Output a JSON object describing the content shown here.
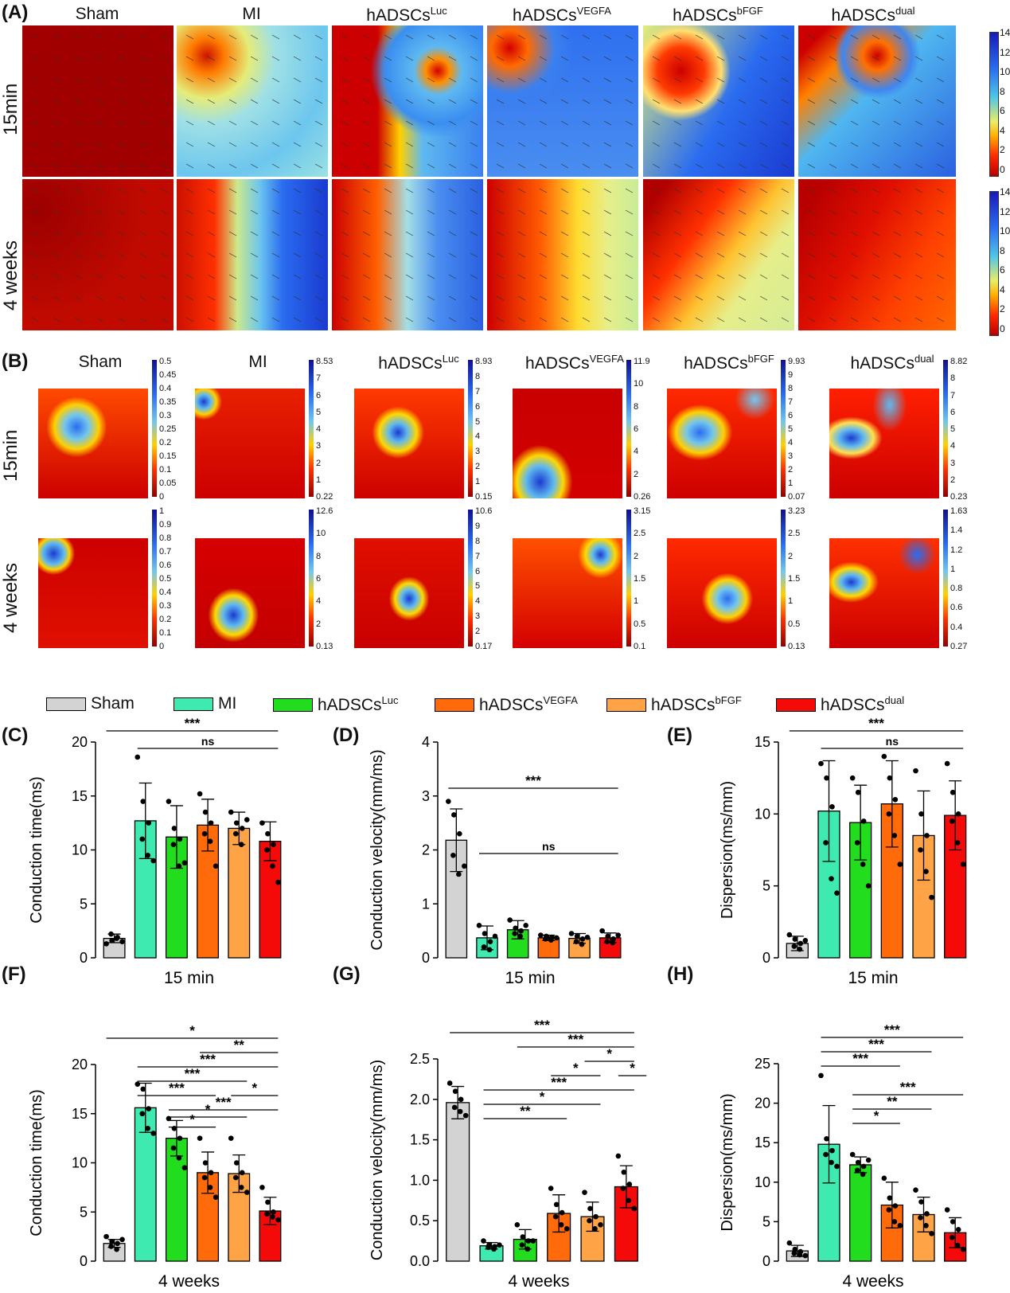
{
  "panel_letters": {
    "A": "(A)",
    "B": "(B)",
    "C": "(C)",
    "D": "(D)",
    "E": "(E)",
    "F": "(F)",
    "G": "(G)",
    "H": "(H)"
  },
  "groups": [
    {
      "base": "Sham",
      "sup": ""
    },
    {
      "base": "MI",
      "sup": ""
    },
    {
      "base": "hADSCs",
      "sup": "Luc"
    },
    {
      "base": "hADSCs",
      "sup": "VEGFA"
    },
    {
      "base": "hADSCs",
      "sup": "bFGF"
    },
    {
      "base": "hADSCs",
      "sup": "dual"
    }
  ],
  "row_labels": {
    "r1": "15min",
    "r2": "4 weeks"
  },
  "panel_a": {
    "colorbar_ticks": [
      "14",
      "12",
      "10",
      "8",
      "6",
      "4",
      "2",
      "0"
    ]
  },
  "panel_b": {
    "row1_scales": [
      {
        "ticks": [
          "0.5",
          "0.45",
          "0.4",
          "0.35",
          "0.3",
          "0.25",
          "0.2",
          "0.15",
          "0.1",
          "0.05",
          "0"
        ]
      },
      {
        "ticks": [
          "8.53",
          "7",
          "6",
          "5",
          "4",
          "3",
          "2",
          "1",
          "0.22"
        ]
      },
      {
        "ticks": [
          "8.93",
          "8",
          "7",
          "6",
          "5",
          "4",
          "3",
          "2",
          "1",
          "0.15"
        ]
      },
      {
        "ticks": [
          "11.9",
          "10",
          "8",
          "6",
          "4",
          "2",
          "0.26"
        ]
      },
      {
        "ticks": [
          "9.93",
          "9",
          "8",
          "7",
          "6",
          "5",
          "4",
          "3",
          "2",
          "1",
          "0.07"
        ]
      },
      {
        "ticks": [
          "8.82",
          "8",
          "7",
          "6",
          "5",
          "4",
          "3",
          "2",
          "0.23"
        ]
      }
    ],
    "row2_scales": [
      {
        "ticks": [
          "1",
          "0.9",
          "0.8",
          "0.7",
          "0.6",
          "0.5",
          "0.4",
          "0.3",
          "0.2",
          "0.1",
          "0"
        ]
      },
      {
        "ticks": [
          "12.6",
          "10",
          "8",
          "6",
          "4",
          "2",
          "0.13"
        ]
      },
      {
        "ticks": [
          "10.6",
          "9",
          "8",
          "7",
          "6",
          "5",
          "4",
          "3",
          "2",
          "0.17"
        ]
      },
      {
        "ticks": [
          "3.15",
          "2.5",
          "2",
          "1.5",
          "1",
          "0.5",
          "0.1"
        ]
      },
      {
        "ticks": [
          "3.23",
          "2.5",
          "2",
          "1.5",
          "1",
          "0.5",
          "0.13"
        ]
      },
      {
        "ticks": [
          "1.63",
          "1.4",
          "1.2",
          "1",
          "0.8",
          "0.6",
          "0.4",
          "0.27"
        ]
      }
    ]
  },
  "legend": {
    "colors": [
      "#d3d3d3",
      "#3eeaaf",
      "#22dd1e",
      "#ff6a0a",
      "#ffa347",
      "#f50a0a"
    ]
  },
  "chart_data": [
    {
      "id": "C",
      "type": "bar",
      "xlabel": "15 min",
      "ylabel": "Conduction time(ms)",
      "ylim": [
        0,
        20
      ],
      "yticks": [
        "0",
        "5",
        "10",
        "15",
        "20"
      ],
      "categories": [
        "Sham",
        "MI",
        "hADSCsLuc",
        "hADSCsVEGFA",
        "hADSCsbFGF",
        "hADSCsdual"
      ],
      "values": [
        1.8,
        12.7,
        11.2,
        12.3,
        12.0,
        10.8
      ],
      "errors": [
        0.4,
        3.5,
        2.9,
        2.4,
        1.5,
        1.8
      ],
      "points": [
        [
          1.3,
          1.6,
          1.9,
          2.2,
          1.8,
          1.5
        ],
        [
          18.6,
          14.5,
          12.5,
          11.0,
          9.5,
          9.0
        ],
        [
          14.5,
          12.0,
          11.0,
          10.5,
          8.5,
          8.8
        ],
        [
          15.2,
          13.5,
          12.5,
          11.5,
          10.8,
          8.5
        ],
        [
          13.5,
          12.5,
          12.0,
          11.5,
          10.5,
          12.8
        ],
        [
          12.5,
          11.5,
          10.5,
          10.0,
          8.5,
          7.0
        ]
      ],
      "sig": [
        {
          "from": 0,
          "to": 5,
          "label": "***",
          "level": 0
        },
        {
          "from": 1,
          "to": 5,
          "label": "ns",
          "level": 1
        }
      ]
    },
    {
      "id": "D",
      "type": "bar",
      "xlabel": "15 min",
      "ylabel": "Conduction velocity(mm/ms)",
      "ylim": [
        0,
        4
      ],
      "yticks": [
        "0",
        "1",
        "2",
        "3",
        "4"
      ],
      "categories": [
        "Sham",
        "MI",
        "hADSCsLuc",
        "hADSCsVEGFA",
        "hADSCsbFGF",
        "hADSCsdual"
      ],
      "values": [
        2.18,
        0.37,
        0.52,
        0.37,
        0.36,
        0.37
      ],
      "errors": [
        0.58,
        0.22,
        0.17,
        0.05,
        0.09,
        0.09
      ],
      "points": [
        [
          2.9,
          2.65,
          2.3,
          1.9,
          1.55,
          1.7
        ],
        [
          0.6,
          0.45,
          0.3,
          0.2,
          0.15,
          0.4
        ],
        [
          0.7,
          0.55,
          0.5,
          0.45,
          0.4,
          0.6
        ],
        [
          0.42,
          0.4,
          0.38,
          0.35,
          0.33,
          0.37
        ],
        [
          0.45,
          0.4,
          0.35,
          0.3,
          0.25,
          0.38
        ],
        [
          0.5,
          0.4,
          0.35,
          0.3,
          0.28,
          0.42
        ]
      ],
      "sig": [
        {
          "from": 0,
          "to": 5,
          "label": "***",
          "level": 1
        },
        {
          "from": 1,
          "to": 5,
          "label": "ns",
          "level": 0
        }
      ]
    },
    {
      "id": "E",
      "type": "bar",
      "xlabel": "15 min",
      "ylabel": "Dispersion(ms/mm)",
      "ylim": [
        0,
        15
      ],
      "yticks": [
        "0",
        "5",
        "10",
        "15"
      ],
      "categories": [
        "Sham",
        "MI",
        "hADSCsLuc",
        "hADSCsVEGFA",
        "hADSCsbFGF",
        "hADSCsdual"
      ],
      "values": [
        1.0,
        10.2,
        9.4,
        10.7,
        8.5,
        9.9
      ],
      "errors": [
        0.5,
        3.5,
        2.6,
        3.0,
        3.1,
        2.4
      ],
      "points": [
        [
          1.6,
          1.3,
          1.0,
          0.8,
          0.6,
          1.2
        ],
        [
          13.5,
          12.5,
          10.5,
          8.0,
          5.5,
          4.5
        ],
        [
          12.5,
          11.5,
          9.5,
          8.0,
          6.5,
          5.0
        ],
        [
          14.0,
          12.5,
          11.0,
          10.0,
          8.5,
          6.5
        ],
        [
          13.0,
          10.0,
          8.5,
          7.5,
          6.0,
          4.2
        ],
        [
          13.5,
          11.5,
          10.0,
          9.5,
          8.0,
          6.5
        ]
      ],
      "sig": [
        {
          "from": 0,
          "to": 5,
          "label": "***",
          "level": 0
        },
        {
          "from": 1,
          "to": 5,
          "label": "ns",
          "level": 1
        }
      ]
    },
    {
      "id": "F",
      "type": "bar",
      "xlabel": "4 weeks",
      "ylabel": "Conduction time(ms)",
      "ylim": [
        0,
        20
      ],
      "yticks": [
        "0",
        "5",
        "10",
        "15",
        "20"
      ],
      "categories": [
        "Sham",
        "MI",
        "hADSCsLuc",
        "hADSCsVEGFA",
        "hADSCsbFGF",
        "hADSCsdual"
      ],
      "values": [
        1.8,
        15.6,
        12.5,
        9.0,
        8.9,
        5.1
      ],
      "errors": [
        0.4,
        2.5,
        1.8,
        2.1,
        1.9,
        1.4
      ],
      "points": [
        [
          2.5,
          2.0,
          1.8,
          1.5,
          1.2,
          2.2
        ],
        [
          18.0,
          17.5,
          15.5,
          15.0,
          13.5,
          13.0
        ],
        [
          14.5,
          13.5,
          12.5,
          11.5,
          10.5,
          9.5
        ],
        [
          12.5,
          10.0,
          9.0,
          8.5,
          7.5,
          6.5
        ],
        [
          12.5,
          10.0,
          9.0,
          8.5,
          7.5,
          7.0
        ],
        [
          7.5,
          6.0,
          5.0,
          4.8,
          4.5,
          4.2
        ]
      ],
      "sig": [
        {
          "from": 0,
          "to": 5,
          "label": "*",
          "level": 6
        },
        {
          "from": 3,
          "to": 5,
          "label": "**",
          "level": 5
        },
        {
          "from": 1,
          "to": 5,
          "label": "***",
          "level": 4
        },
        {
          "from": 1,
          "to": 4,
          "label": "***",
          "level": 3
        },
        {
          "from": 1,
          "to": 3,
          "label": "***",
          "level": 2
        },
        {
          "from": 4,
          "to": 5,
          "label": "*",
          "level": 2
        },
        {
          "from": 2,
          "to": 5,
          "label": "***",
          "level": 1
        },
        {
          "from": 2,
          "to": 4,
          "label": "*",
          "level": 0.5
        },
        {
          "from": 2,
          "to": 3,
          "label": "*",
          "level": -0.2
        }
      ]
    },
    {
      "id": "G",
      "type": "bar",
      "xlabel": "4 weeks",
      "ylabel": "Conduction velocity(mm/ms)",
      "ylim": [
        0,
        2.5
      ],
      "yticks": [
        "0.0",
        "0.5",
        "1.0",
        "1.5",
        "2.0",
        "2.5"
      ],
      "categories": [
        "Sham",
        "MI",
        "hADSCsLuc",
        "hADSCsVEGFA",
        "hADSCsbFGF",
        "hADSCsdual"
      ],
      "values": [
        1.96,
        0.19,
        0.27,
        0.59,
        0.55,
        0.92
      ],
      "errors": [
        0.2,
        0.04,
        0.12,
        0.23,
        0.18,
        0.26
      ],
      "points": [
        [
          2.2,
          2.1,
          2.0,
          1.9,
          1.85,
          1.8
        ],
        [
          0.25,
          0.2,
          0.18,
          0.17,
          0.15,
          0.2
        ],
        [
          0.45,
          0.3,
          0.25,
          0.2,
          0.15,
          0.25
        ],
        [
          0.9,
          0.7,
          0.6,
          0.55,
          0.45,
          0.4
        ],
        [
          0.85,
          0.65,
          0.55,
          0.5,
          0.4,
          0.45
        ],
        [
          1.3,
          1.1,
          0.95,
          0.9,
          0.75,
          0.65
        ]
      ],
      "sig": [
        {
          "from": 0,
          "to": 5,
          "label": "***",
          "level": 6
        },
        {
          "from": 2,
          "to": 5,
          "label": "***",
          "level": 5
        },
        {
          "from": 4,
          "to": 5,
          "label": "*",
          "level": 4
        },
        {
          "from": 3,
          "to": 4,
          "label": "*",
          "level": 3
        },
        {
          "from": 5,
          "to": 5.6,
          "label": "*",
          "level": 3
        },
        {
          "from": 1,
          "to": 5,
          "label": "***",
          "level": 2
        },
        {
          "from": 1,
          "to": 4,
          "label": "*",
          "level": 1
        },
        {
          "from": 1,
          "to": 3,
          "label": "**",
          "level": 0
        }
      ]
    },
    {
      "id": "H",
      "type": "bar",
      "xlabel": "4 weeks",
      "ylabel": "Dispersion(ms/mm)",
      "ylim": [
        0,
        25
      ],
      "yticks": [
        "0",
        "5",
        "10",
        "15",
        "20",
        "25"
      ],
      "categories": [
        "Sham",
        "MI",
        "hADSCsLuc",
        "hADSCsVEGFA",
        "hADSCsbFGF",
        "hADSCsdual"
      ],
      "values": [
        1.3,
        14.8,
        12.2,
        7.1,
        5.9,
        3.6
      ],
      "errors": [
        0.7,
        4.9,
        1.0,
        2.9,
        2.2,
        1.9
      ],
      "points": [
        [
          2.3,
          1.5,
          1.2,
          1.0,
          0.8,
          0.7
        ],
        [
          23.5,
          15.5,
          14.0,
          13.5,
          12.5,
          12.0
        ],
        [
          13.5,
          12.5,
          12.0,
          11.5,
          11.0,
          12.8
        ],
        [
          10.5,
          8.0,
          7.0,
          6.5,
          5.0,
          4.5
        ],
        [
          9.0,
          7.5,
          6.0,
          5.5,
          4.5,
          3.5
        ],
        [
          6.5,
          5.0,
          4.0,
          3.0,
          2.0,
          1.5
        ]
      ],
      "sig": [
        {
          "from": 1,
          "to": 5,
          "label": "***",
          "level": 6
        },
        {
          "from": 1,
          "to": 4,
          "label": "***",
          "level": 5
        },
        {
          "from": 1,
          "to": 3,
          "label": "***",
          "level": 4
        },
        {
          "from": 2,
          "to": 5,
          "label": "***",
          "level": 2
        },
        {
          "from": 2,
          "to": 4,
          "label": "**",
          "level": 1
        },
        {
          "from": 2,
          "to": 3,
          "label": "*",
          "level": 0
        }
      ]
    }
  ]
}
